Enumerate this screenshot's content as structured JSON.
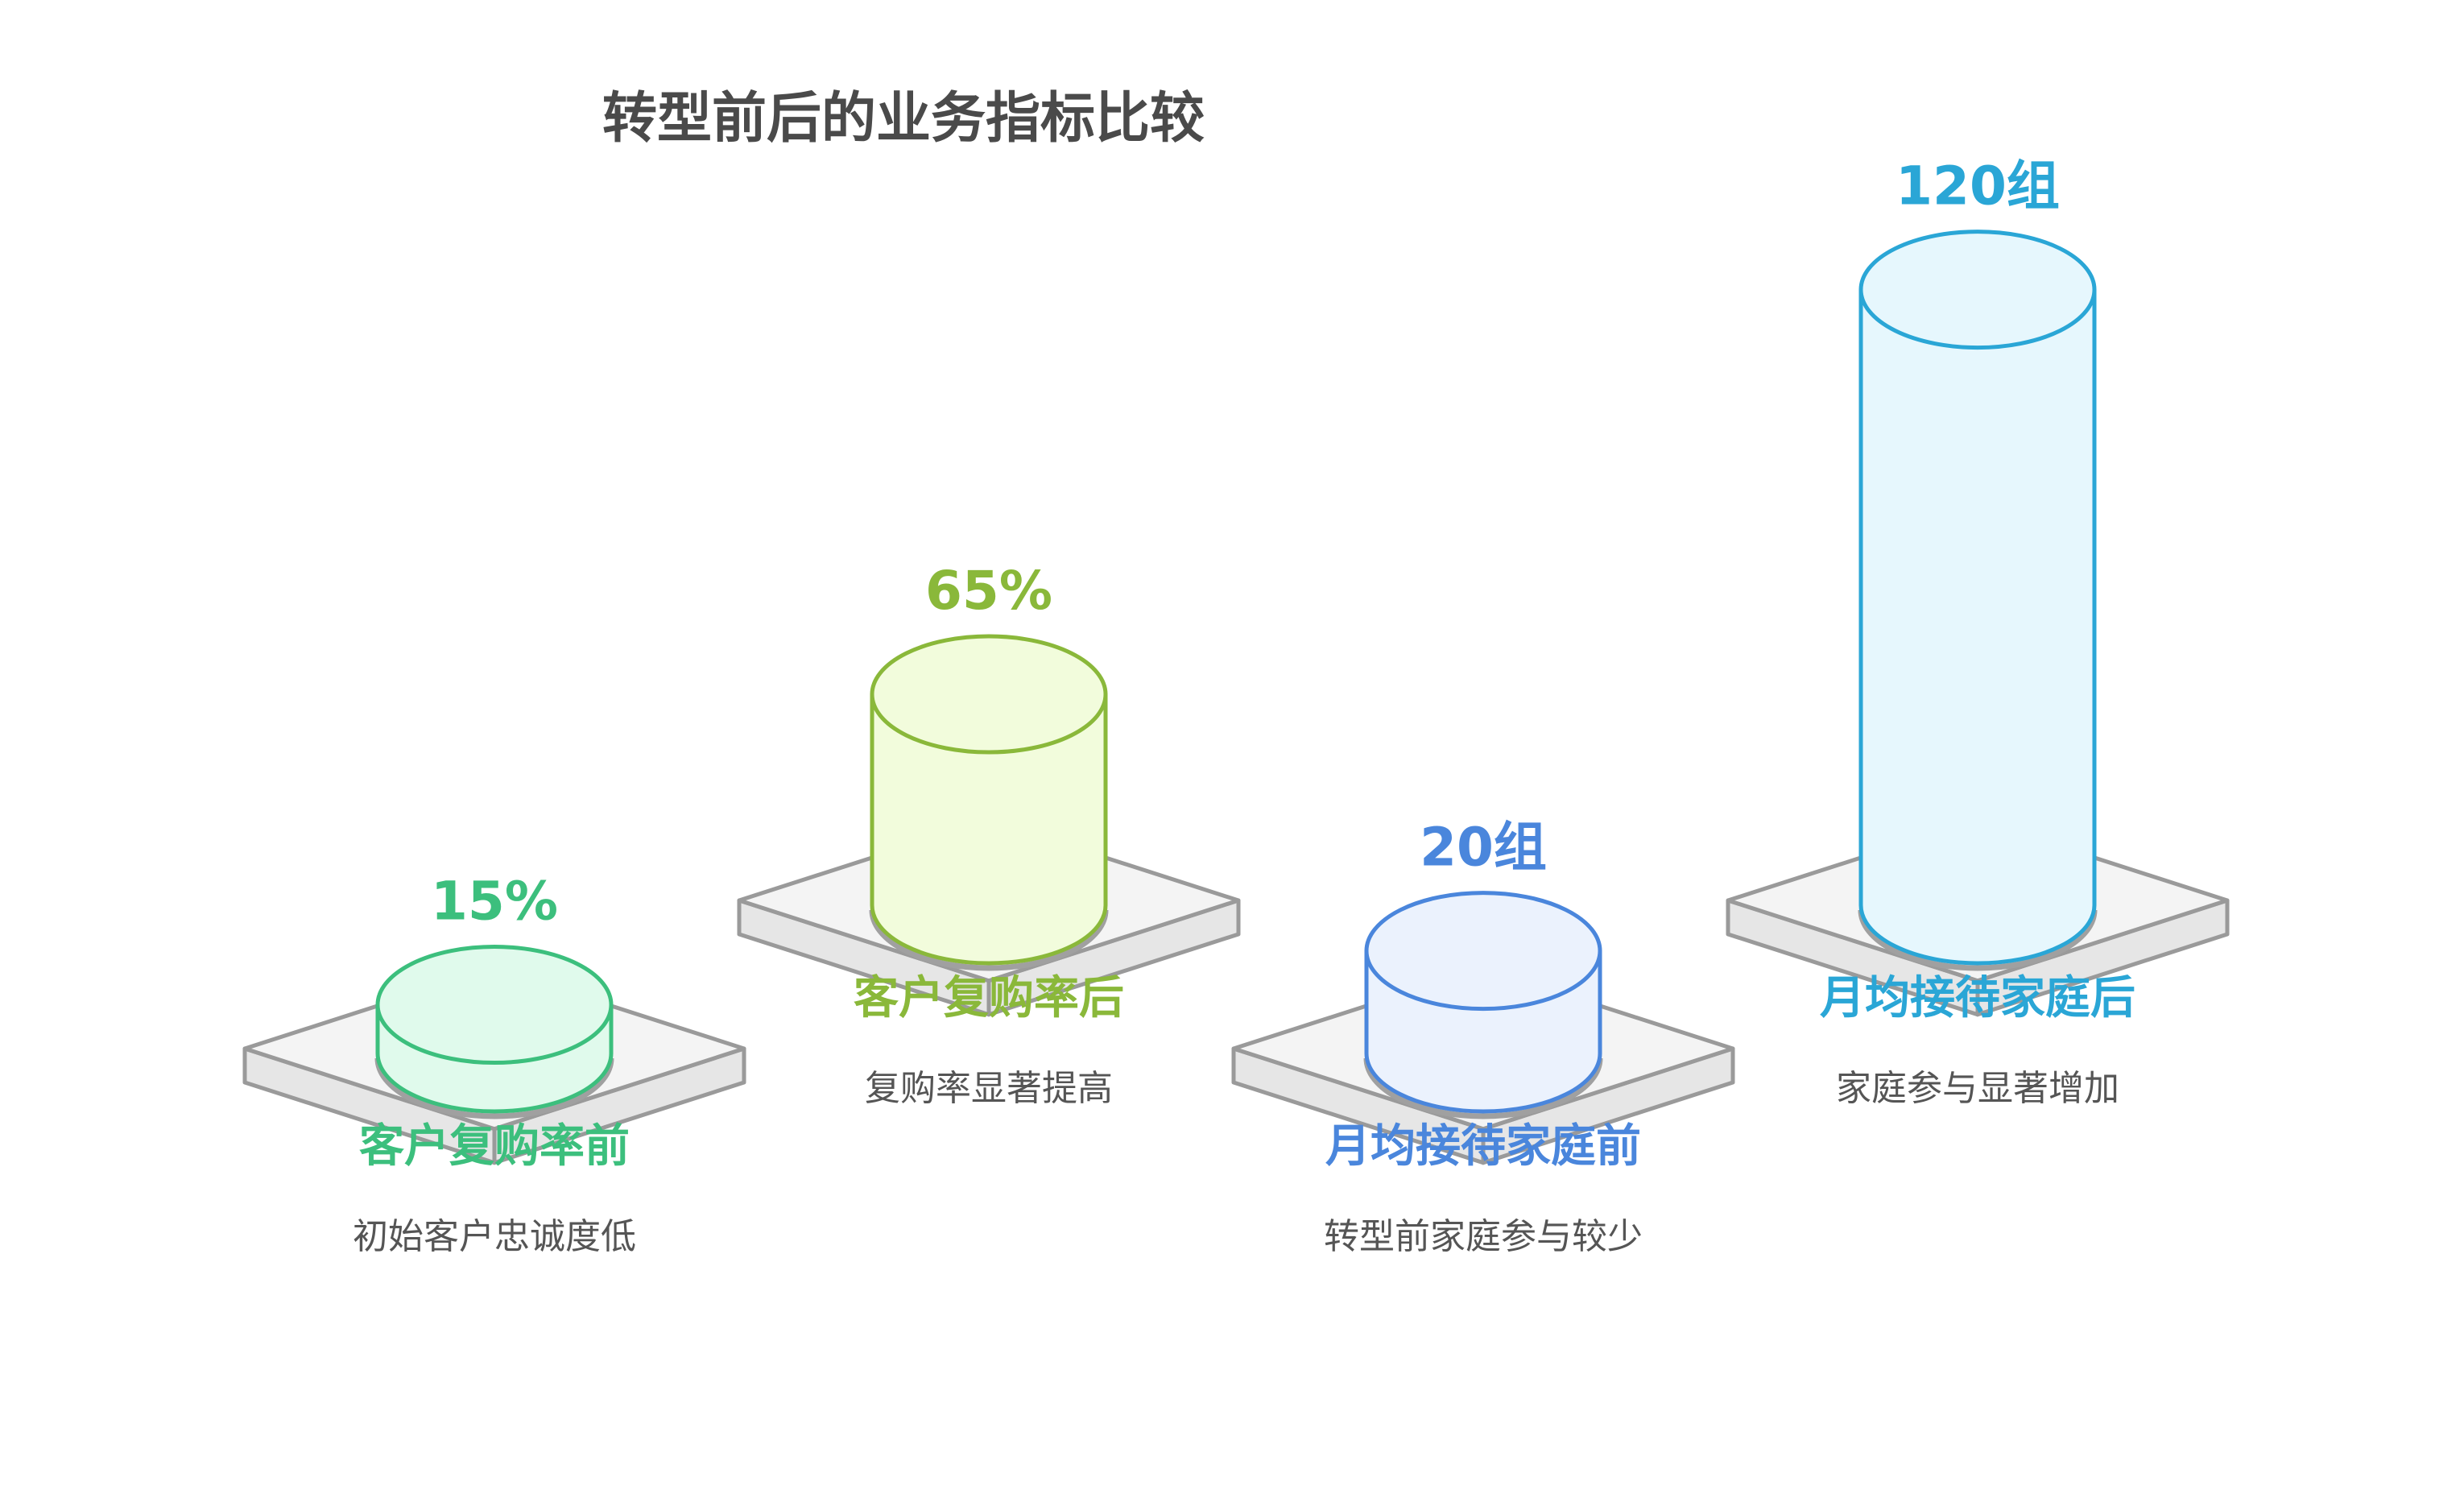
{
  "chart_data": {
    "type": "bar",
    "title": "转型前后的业务指标比较",
    "title_color": "#4a4a4a",
    "categories": [
      "客户复购率前",
      "客户复购率后",
      "月均接待家庭前",
      "月均接待家庭后"
    ],
    "items": [
      {
        "name": "客户复购率前",
        "value": 15,
        "value_label": "15%",
        "description": "初始客户忠诚度低",
        "color": "#3cbf7d",
        "fill": "#e0faec"
      },
      {
        "name": "客户复购率后",
        "value": 65,
        "value_label": "65%",
        "description": "复购率显著提高",
        "color": "#8ab83a",
        "fill": "#f2fcdc"
      },
      {
        "name": "月均接待家庭前",
        "value": 20,
        "value_label": "20组",
        "description": "转型前家庭参与较少",
        "color": "#4a86dc",
        "fill": "#ebf2fd"
      },
      {
        "name": "月均接待家庭后",
        "value": 120,
        "value_label": "120组",
        "description": "家庭参与显著增加",
        "color": "#2aa6d6",
        "fill": "#e6f7fd"
      }
    ],
    "colors": {
      "platform_fill": "#f4f4f4",
      "platform_side": "#e6e6e6",
      "platform_stroke": "#9a9a9a",
      "description_text": "#555555"
    }
  }
}
